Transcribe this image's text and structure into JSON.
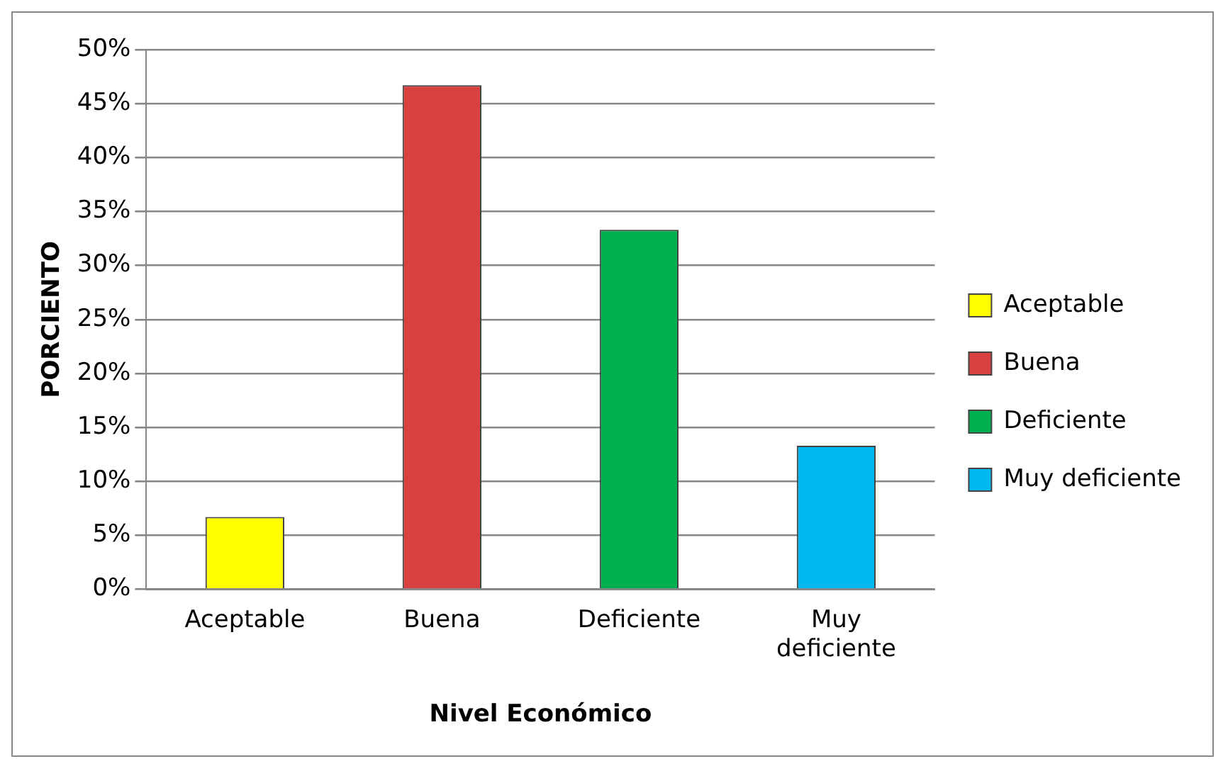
{
  "chart_data": {
    "type": "bar",
    "xlabel": "Nivel Económico",
    "ylabel": "PORCIENTO",
    "categories": [
      "Aceptable",
      "Buena",
      "Deficiente",
      "Muy deficiente"
    ],
    "series": [
      {
        "name": "Aceptable",
        "color": "#ffff00",
        "values": [
          6.7,
          null,
          null,
          null
        ]
      },
      {
        "name": "Buena",
        "color": "#d94040",
        "values": [
          null,
          46.7,
          null,
          null
        ]
      },
      {
        "name": "Deficiente",
        "color": "#00b050",
        "values": [
          null,
          null,
          33.3,
          null
        ]
      },
      {
        "name": "Muy deficiente",
        "color": "#00b8f0",
        "values": [
          null,
          null,
          null,
          13.3
        ]
      }
    ],
    "ylim": [
      0,
      50
    ],
    "yticks": [
      {
        "value": 0,
        "label": "0%"
      },
      {
        "value": 5,
        "label": "5%"
      },
      {
        "value": 10,
        "label": "10%"
      },
      {
        "value": 15,
        "label": "15%"
      },
      {
        "value": 20,
        "label": "20%"
      },
      {
        "value": 25,
        "label": "25%"
      },
      {
        "value": 30,
        "label": "30%"
      },
      {
        "value": 35,
        "label": "35%"
      },
      {
        "value": 40,
        "label": "40%"
      },
      {
        "value": 45,
        "label": "45%"
      },
      {
        "value": 50,
        "label": "50%"
      }
    ],
    "grid": "y",
    "legend": "right"
  }
}
